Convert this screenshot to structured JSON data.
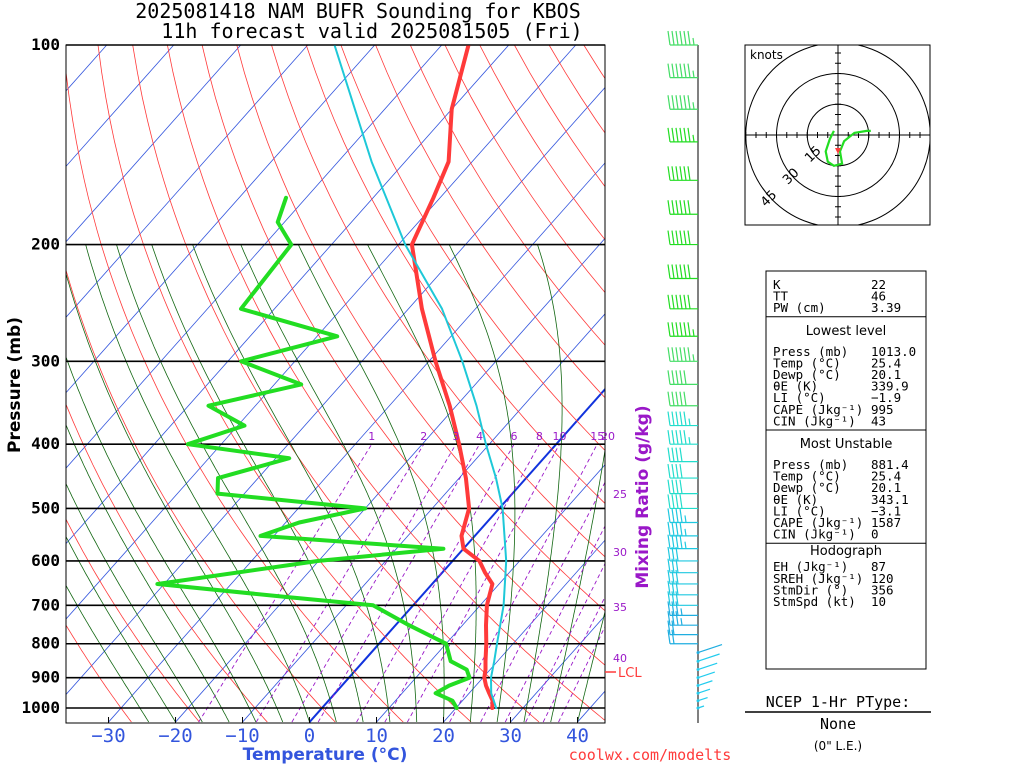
{
  "header": {
    "line1": "2025081418 NAM BUFR Sounding for KBOS",
    "line2": "11h forecast valid 2025081505 (Fri)"
  },
  "axes": {
    "y_title": "Pressure (mb)",
    "x_title": "Temperature (°C)",
    "mixing_ratio_title": "Mixing Ratio (g/kg)",
    "pressure_ticks": [
      "100",
      "200",
      "300",
      "400",
      "500",
      "600",
      "700",
      "800",
      "900",
      "1000"
    ],
    "temperature_ticks": [
      "−30",
      "−20",
      "−10",
      "0",
      "10",
      "20",
      "30",
      "40"
    ],
    "mixing_ratio_ticks": [
      "1",
      "2",
      "3",
      "4",
      "6",
      "8",
      "10",
      "15",
      "20"
    ],
    "mixing_ratio_side_ticks": [
      "25",
      "30",
      "35",
      "40"
    ],
    "lcl_label": "LCL"
  },
  "chart_data": {
    "type": "line",
    "title": "2025081418 NAM BUFR Sounding for KBOS",
    "subtitle": "11h forecast valid 2025081505 (Fri)",
    "xlabel": "Temperature (°C)",
    "ylabel": "Pressure (mb)",
    "ylim": [
      1050,
      100
    ],
    "xlim_at_1000mb": [
      -40,
      42
    ],
    "y_scale": "log",
    "skew": "skew-T",
    "series": [
      {
        "role": "temperature",
        "color": "#ff3a3a",
        "points": [
          [
            1000,
            25.4
          ],
          [
            975,
            24.5
          ],
          [
            950,
            23.0
          ],
          [
            925,
            21.5
          ],
          [
            900,
            20.2
          ],
          [
            875,
            19.3
          ],
          [
            850,
            18.2
          ],
          [
            800,
            16.0
          ],
          [
            750,
            13.5
          ],
          [
            700,
            11.0
          ],
          [
            650,
            9.0
          ],
          [
            625,
            6.4
          ],
          [
            600,
            4.0
          ],
          [
            575,
            0.0
          ],
          [
            550,
            -2.0
          ],
          [
            500,
            -4.5
          ],
          [
            450,
            -9.0
          ],
          [
            400,
            -14.5
          ],
          [
            350,
            -21.0
          ],
          [
            300,
            -29.0
          ],
          [
            250,
            -38.0
          ],
          [
            200,
            -48.0
          ],
          [
            170,
            -51.0
          ],
          [
            150,
            -53.5
          ],
          [
            125,
            -60.0
          ],
          [
            100,
            -66.0
          ]
        ]
      },
      {
        "role": "dewpoint",
        "color": "#22dd22",
        "points": [
          [
            1000,
            20.1
          ],
          [
            975,
            18.5
          ],
          [
            950,
            15.0
          ],
          [
            925,
            16.0
          ],
          [
            900,
            18.0
          ],
          [
            875,
            16.5
          ],
          [
            850,
            13.0
          ],
          [
            800,
            10.0
          ],
          [
            750,
            2.0
          ],
          [
            700,
            -6.0
          ],
          [
            680,
            -20.0
          ],
          [
            650,
            -41.0
          ],
          [
            600,
            -20.0
          ],
          [
            575,
            -3.0
          ],
          [
            550,
            -32.0
          ],
          [
            525,
            -28.0
          ],
          [
            500,
            -20.0
          ],
          [
            475,
            -44.0
          ],
          [
            450,
            -46.0
          ],
          [
            420,
            -38.0
          ],
          [
            400,
            -55.0
          ],
          [
            375,
            -49.0
          ],
          [
            350,
            -57.0
          ],
          [
            325,
            -46.0
          ],
          [
            300,
            -58.0
          ],
          [
            275,
            -47.0
          ],
          [
            250,
            -65.0
          ],
          [
            200,
            -66.0
          ],
          [
            185,
            -71.0
          ],
          [
            170,
            -73.0
          ]
        ]
      },
      {
        "role": "surface-parcel",
        "color": "#1ec8d8",
        "points": [
          [
            1000,
            26.0
          ],
          [
            950,
            23.3
          ],
          [
            900,
            21.2
          ],
          [
            850,
            19.5
          ],
          [
            800,
            17.6
          ],
          [
            700,
            13.5
          ],
          [
            600,
            8.0
          ],
          [
            500,
            0.5
          ],
          [
            450,
            -4.5
          ],
          [
            400,
            -10.5
          ],
          [
            350,
            -17.0
          ],
          [
            300,
            -25.0
          ],
          [
            250,
            -35.0
          ],
          [
            200,
            -49.0
          ],
          [
            150,
            -65.0
          ],
          [
            100,
            -86.0
          ]
        ]
      }
    ],
    "lcl_pressure_mb": 880,
    "mixing_ratio_lines_gkg": [
      1,
      2,
      3,
      4,
      6,
      8,
      10,
      15,
      20,
      25,
      30,
      35,
      40
    ],
    "wind_barbs": {
      "units": "knots",
      "samples": [
        [
          1000,
          5
        ],
        [
          975,
          8
        ],
        [
          950,
          10
        ],
        [
          925,
          12
        ],
        [
          900,
          14
        ],
        [
          875,
          16
        ],
        [
          850,
          18
        ],
        [
          825,
          20
        ],
        [
          800,
          22
        ],
        [
          775,
          24
        ],
        [
          750,
          26
        ],
        [
          725,
          28
        ],
        [
          700,
          30
        ],
        [
          675,
          30
        ],
        [
          650,
          32
        ],
        [
          625,
          32
        ],
        [
          600,
          34
        ],
        [
          575,
          35
        ],
        [
          550,
          36
        ],
        [
          525,
          38
        ],
        [
          500,
          40
        ],
        [
          475,
          40
        ],
        [
          450,
          42
        ],
        [
          425,
          44
        ],
        [
          400,
          46
        ],
        [
          375,
          48
        ],
        [
          350,
          50
        ],
        [
          325,
          52
        ],
        [
          300,
          55
        ],
        [
          275,
          58
        ],
        [
          250,
          60
        ],
        [
          225,
          62
        ],
        [
          200,
          63
        ],
        [
          180,
          60
        ],
        [
          160,
          62
        ],
        [
          140,
          58
        ],
        [
          125,
          56
        ],
        [
          112,
          55
        ],
        [
          100,
          55
        ]
      ]
    },
    "hodograph": {
      "units": "knots",
      "ring_labels": [
        "15",
        "30",
        "45"
      ],
      "points_uv": [
        [
          -2,
          2
        ],
        [
          -4,
          -2
        ],
        [
          -6,
          -8
        ],
        [
          -5,
          -13
        ],
        [
          -2,
          -15
        ],
        [
          2,
          -14
        ],
        [
          1,
          -8
        ],
        [
          3,
          -3
        ],
        [
          8,
          1
        ],
        [
          14,
          2
        ],
        [
          16,
          2
        ]
      ]
    }
  },
  "stats_panel": {
    "indices": [
      {
        "label": "K",
        "value": "22"
      },
      {
        "label": "TT",
        "value": "46"
      },
      {
        "label": "PW (cm)",
        "value": "3.39"
      }
    ],
    "lowest_level_title": "Lowest level",
    "lowest_level": [
      {
        "label": "Press (mb)",
        "value": "1013.0"
      },
      {
        "label": "Temp (°C)",
        "value": "25.4"
      },
      {
        "label": "Dewp (°C)",
        "value": "20.1"
      },
      {
        "label": "θE (K)",
        "value": "339.9"
      },
      {
        "label": "LI (°C)",
        "value": "−1.9"
      },
      {
        "label": "CAPE (Jkg⁻¹)",
        "value": "995"
      },
      {
        "label": "CIN (Jkg⁻¹)",
        "value": "43"
      }
    ],
    "most_unstable_title": "Most Unstable",
    "most_unstable": [
      {
        "label": "Press (mb)",
        "value": "881.4"
      },
      {
        "label": "Temp (°C)",
        "value": "25.4"
      },
      {
        "label": "Dewp (°C)",
        "value": "20.1"
      },
      {
        "label": "θE (K)",
        "value": "343.1"
      },
      {
        "label": "LI (°C)",
        "value": "−3.1"
      },
      {
        "label": "CAPE (Jkg⁻¹)",
        "value": "1587"
      },
      {
        "label": "CIN (Jkg⁻¹)",
        "value": "0"
      }
    ],
    "hodograph_title": "Hodograph",
    "hodograph": [
      {
        "label": "EH (Jkg⁻¹)",
        "value": "87"
      },
      {
        "label": "SREH (Jkg⁻¹)",
        "value": "120"
      },
      {
        "label": "StmDir (°)",
        "value": "356"
      },
      {
        "label": "StmSpd (kt)",
        "value": "10"
      }
    ]
  },
  "ptype": {
    "title": "NCEP 1-Hr PType:",
    "value": "None",
    "note": "(0\" L.E.)"
  },
  "footer": {
    "credit": "coolwx.com/modelts"
  },
  "colors": {
    "isotherm": "#3355dd",
    "dry_adiabat": "#ff3a3a",
    "moist_adiabat": "#116611",
    "mixing_ratio": "#9a18c8",
    "freezing_line": "#1133dd"
  }
}
